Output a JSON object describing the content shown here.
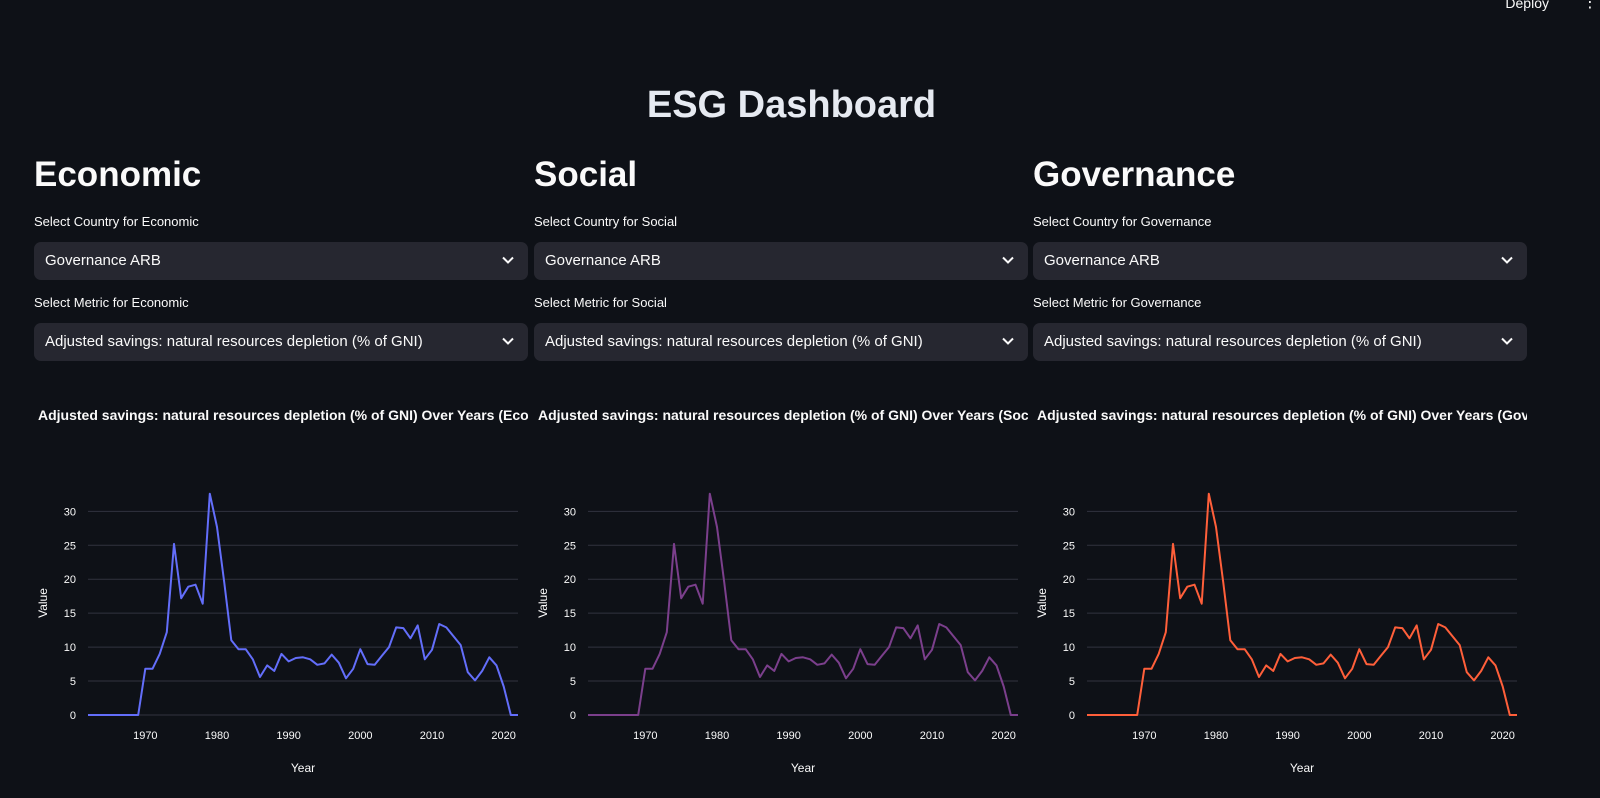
{
  "header": {
    "deploy_label": "Deploy",
    "menu_icon": "vertical-ellipsis-icon"
  },
  "page_title": "ESG Dashboard",
  "columns": [
    {
      "heading": "Economic",
      "country_label": "Select Country for Economic",
      "country_value": "Governance ARB",
      "metric_label": "Select Metric for Economic",
      "metric_value": "Adjusted savings: natural resources depletion (% of GNI)",
      "chart_title": "Adjusted savings: natural resources depletion (% of GNI) Over Years (Economic)",
      "line_color": "#636efa"
    },
    {
      "heading": "Social",
      "country_label": "Select Country for Social",
      "country_value": "Governance ARB",
      "metric_label": "Select Metric for Social",
      "metric_value": "Adjusted savings: natural resources depletion (% of GNI)",
      "chart_title": "Adjusted savings: natural resources depletion (% of GNI) Over Years (Social)",
      "line_color": "#7b3f8c"
    },
    {
      "heading": "Governance",
      "country_label": "Select Country for Governance",
      "country_value": "Governance ARB",
      "metric_label": "Select Metric for Governance",
      "metric_value": "Adjusted savings: natural resources depletion (% of GNI)",
      "chart_title": "Adjusted savings: natural resources depletion (% of GNI) Over Years (Governance)",
      "line_color": "#ff5f3a"
    }
  ],
  "chart_data": {
    "type": "line",
    "xlabel": "Year",
    "ylabel": "Value",
    "xlim": [
      1962,
      2022
    ],
    "ylim": [
      0,
      33
    ],
    "xticks": [
      1970,
      1980,
      1990,
      2000,
      2010,
      2020
    ],
    "yticks": [
      0,
      5,
      10,
      15,
      20,
      25,
      30
    ],
    "grid": true,
    "x": [
      1962,
      1963,
      1964,
      1965,
      1966,
      1967,
      1968,
      1969,
      1970,
      1971,
      1972,
      1973,
      1974,
      1975,
      1976,
      1977,
      1978,
      1979,
      1980,
      1981,
      1982,
      1983,
      1984,
      1985,
      1986,
      1987,
      1988,
      1989,
      1990,
      1991,
      1992,
      1993,
      1994,
      1995,
      1996,
      1997,
      1998,
      1999,
      2000,
      2001,
      2002,
      2003,
      2004,
      2005,
      2006,
      2007,
      2008,
      2009,
      2010,
      2011,
      2012,
      2013,
      2014,
      2015,
      2016,
      2017,
      2018,
      2019,
      2020,
      2021,
      2022
    ],
    "y": [
      0,
      0,
      0,
      0,
      0,
      0,
      0,
      0,
      6.8,
      6.8,
      9,
      12.2,
      25.2,
      17.2,
      18.9,
      19.2,
      16.4,
      32.6,
      27.7,
      19.6,
      11,
      9.7,
      9.7,
      8.2,
      5.6,
      7.3,
      6.5,
      9,
      7.9,
      8.4,
      8.5,
      8.2,
      7.4,
      7.6,
      8.9,
      7.7,
      5.4,
      6.8,
      9.7,
      7.5,
      7.4,
      8.7,
      10,
      12.9,
      12.8,
      11.3,
      13.2,
      8.2,
      9.6,
      13.4,
      12.9,
      11.6,
      10.3,
      6.3,
      5.1,
      6.5,
      8.5,
      7.3,
      4.2,
      0,
      0
    ]
  }
}
